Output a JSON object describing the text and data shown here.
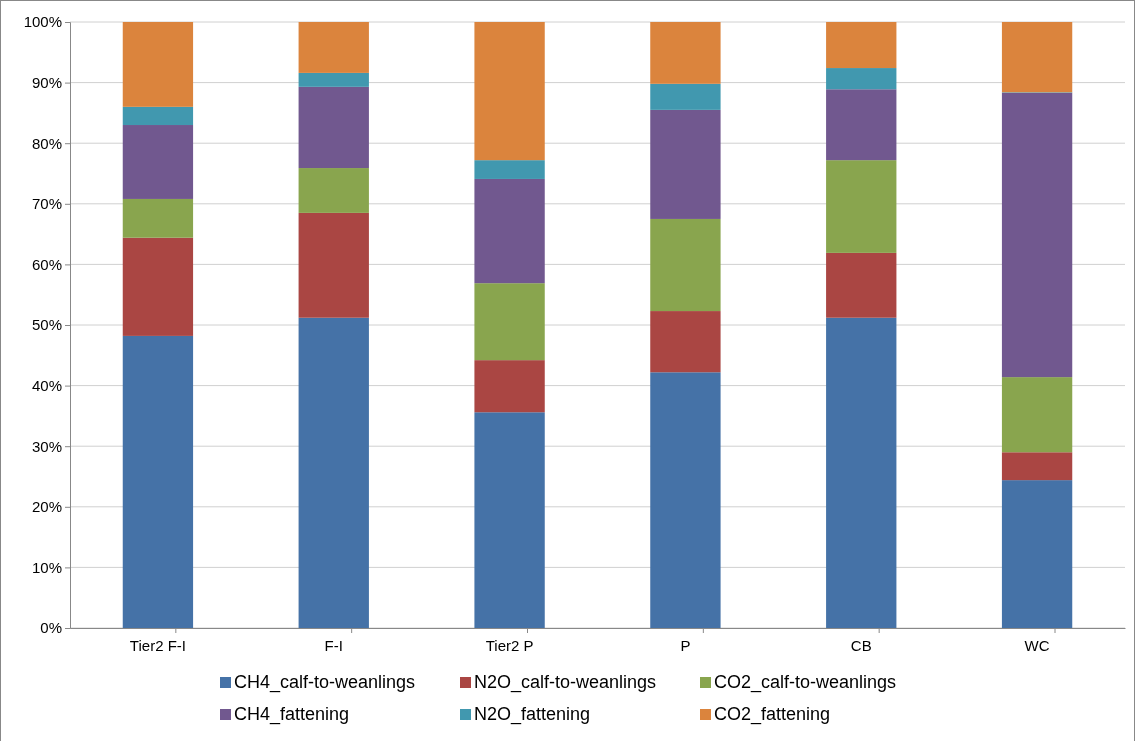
{
  "chart_data": {
    "type": "bar",
    "stacked": true,
    "categories": [
      "Tier2 F-I",
      "F-I",
      "Tier2 P",
      "P",
      "CB",
      "WC"
    ],
    "series": [
      {
        "name": "CH4_calf-to-weanlings",
        "color": "#4572a7",
        "values": [
          48.2,
          51.2,
          35.6,
          42.2,
          51.2,
          24.4
        ]
      },
      {
        "name": "N2O_calf-to-weanlings",
        "color": "#aa4643",
        "values": [
          16.2,
          17.3,
          8.6,
          10.1,
          10.7,
          4.6
        ]
      },
      {
        "name": "CO2_calf-to-weanlings",
        "color": "#89a54e",
        "values": [
          6.4,
          7.4,
          12.7,
          15.2,
          15.3,
          12.4
        ]
      },
      {
        "name": "CH4_fattening",
        "color": "#71588f",
        "values": [
          12.2,
          13.4,
          17.2,
          18.0,
          11.7,
          46.9
        ]
      },
      {
        "name": "N2O_fattening",
        "color": "#4198af",
        "values": [
          3.0,
          2.3,
          3.1,
          4.3,
          3.5,
          0.1
        ]
      },
      {
        "name": "CO2_fattening",
        "color": "#db843d",
        "values": [
          14.0,
          8.4,
          22.8,
          10.2,
          7.6,
          11.6
        ]
      }
    ],
    "ylim": [
      0,
      100
    ],
    "yticks": [
      {
        "value": 0,
        "label": "0%"
      },
      {
        "value": 10,
        "label": "10%"
      },
      {
        "value": 20,
        "label": "20%"
      },
      {
        "value": 30,
        "label": "30%"
      },
      {
        "value": 40,
        "label": "40%"
      },
      {
        "value": 50,
        "label": "50%"
      },
      {
        "value": 60,
        "label": "60%"
      },
      {
        "value": 70,
        "label": "70%"
      },
      {
        "value": 80,
        "label": "80%"
      },
      {
        "value": 90,
        "label": "90%"
      },
      {
        "value": 100,
        "label": "100%"
      }
    ],
    "grid": "y",
    "legend": "bottom"
  }
}
